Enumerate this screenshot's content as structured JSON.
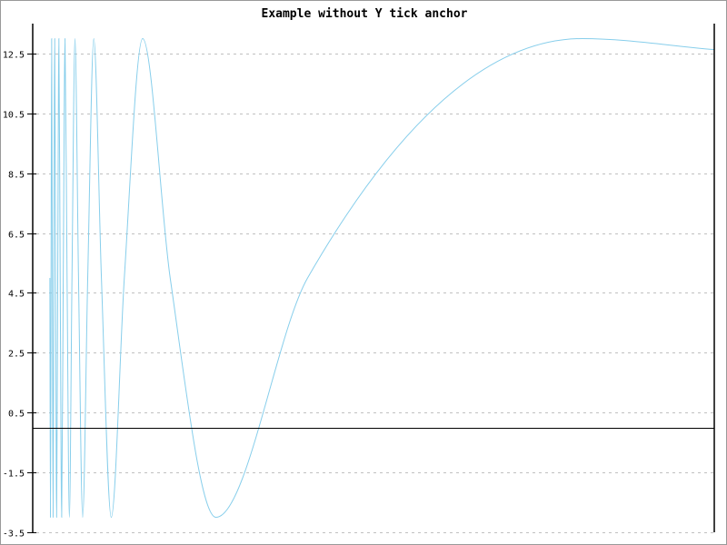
{
  "chart_data": {
    "type": "line",
    "title": "Example without Y tick anchor",
    "xlabel": "",
    "ylabel": "",
    "ylim": [
      -3.5,
      13.5
    ],
    "xlim": [
      0,
      1
    ],
    "y_ticks": [
      -3.5,
      -1.5,
      0.5,
      2.5,
      4.5,
      6.5,
      8.5,
      10.5,
      12.5
    ],
    "y_tick_labels": [
      "-3.5",
      "-1.5",
      "0.5",
      "2.5",
      "4.5",
      "6.5",
      "8.5",
      "10.5",
      "12.5"
    ],
    "x_tick_labels": [],
    "grid": {
      "y": true,
      "x": false,
      "style": "dashed"
    },
    "colors": {
      "line": "#87ceeb",
      "grid": "#c0c0c0",
      "axis": "#000000",
      "border": "#999999"
    },
    "series": [
      {
        "x": [
          0.0252,
          0.026,
          0.0269,
          0.0278,
          0.0288,
          0.0299,
          0.031,
          0.0323,
          0.0336,
          0.0351,
          0.0367,
          0.0384,
          0.0403,
          0.0425,
          0.0448,
          0.0474,
          0.0504,
          0.0538,
          0.0576,
          0.062,
          0.0672,
          0.0733,
          0.0807,
          0.0896,
          0.1008,
          0.1152,
          0.1344,
          0.1613,
          0.2017,
          0.2689,
          0.4033,
          0.8066,
          1.0
        ],
        "y": [
          5,
          -3,
          5,
          13,
          5,
          -3,
          5,
          13,
          5,
          -3,
          5,
          13,
          5,
          -3,
          5,
          13,
          5,
          -3,
          5,
          13,
          5,
          -3,
          5,
          13,
          5,
          -3,
          5,
          13,
          5,
          -3,
          5,
          13,
          12.63
        ]
      }
    ]
  }
}
